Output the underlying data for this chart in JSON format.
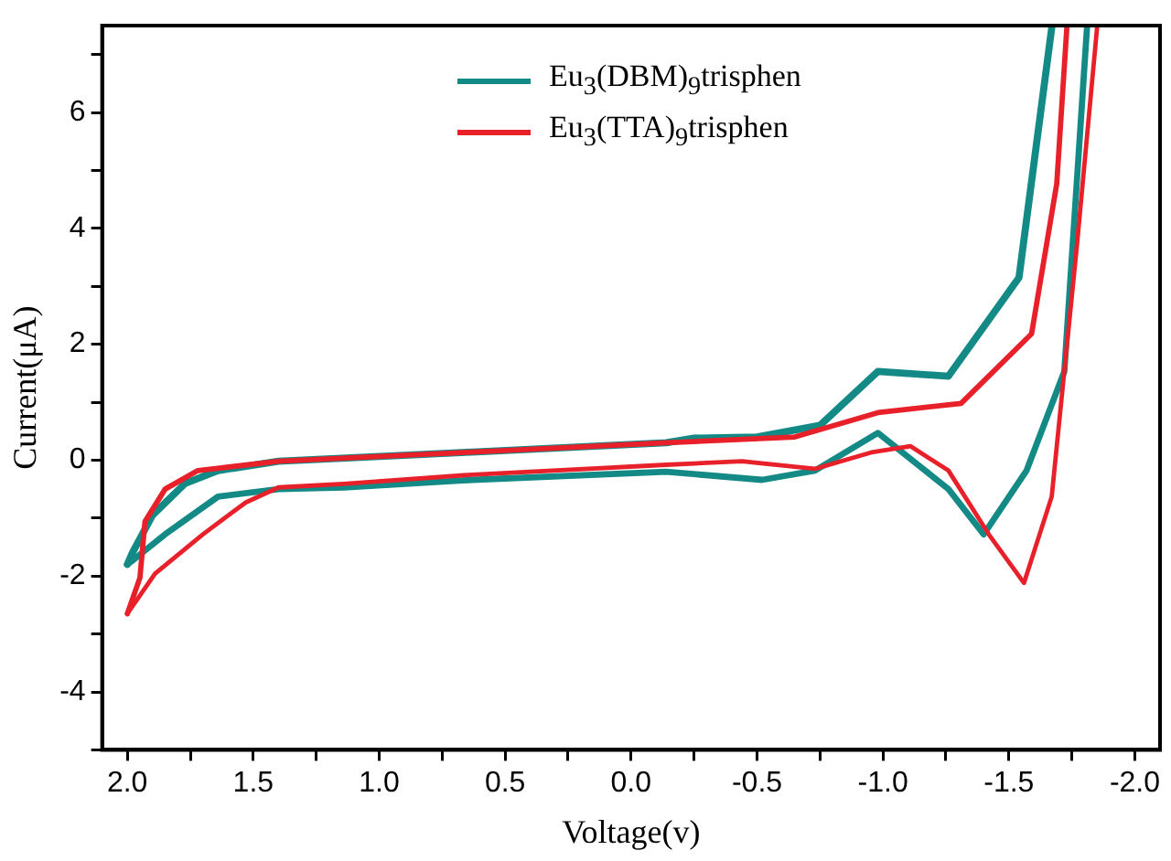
{
  "chart_data": {
    "type": "line",
    "xlabel": "Voltage(v)",
    "ylabel": "Current(μA)",
    "xlim": [
      2.1,
      -2.1
    ],
    "ylim": [
      -5,
      7.5
    ],
    "xticks": [
      {
        "value": 2,
        "label": "2.0"
      },
      {
        "value": 1.75,
        "label": null
      },
      {
        "value": 1.5,
        "label": "1.5"
      },
      {
        "value": 1.25,
        "label": null
      },
      {
        "value": 1,
        "label": "1.0"
      },
      {
        "value": 0.75,
        "label": null
      },
      {
        "value": 0.5,
        "label": "0.5"
      },
      {
        "value": 0.25,
        "label": null
      },
      {
        "value": 0,
        "label": "0.0"
      },
      {
        "value": -0.25,
        "label": null
      },
      {
        "value": -0.5,
        "label": "-0.5"
      },
      {
        "value": -0.75,
        "label": null
      },
      {
        "value": -1,
        "label": "-1.0"
      },
      {
        "value": -1.25,
        "label": null
      },
      {
        "value": -1.5,
        "label": "-1.5"
      },
      {
        "value": -1.75,
        "label": null
      },
      {
        "value": -2,
        "label": "-2.0"
      }
    ],
    "yticks": [
      {
        "value": -5,
        "label": null
      },
      -4,
      {
        "value": -3,
        "label": null
      },
      -2,
      {
        "value": -1,
        "label": null
      },
      0,
      {
        "value": 1,
        "label": null
      },
      2,
      {
        "value": 3,
        "label": null
      },
      4,
      {
        "value": 5,
        "label": null
      },
      6,
      {
        "value": 7,
        "label": null
      }
    ],
    "grid": false,
    "legend": "top",
    "marker": "none",
    "line_style": "solid",
    "series": [
      {
        "name": "Eu$_{3}$(DBM)$_{9}$trisphen",
        "color": "#138a86",
        "x": [
          2.0,
          1.98,
          1.9,
          1.77,
          1.64,
          1.4,
          0.63,
          -0.14,
          -0.25,
          -0.5,
          -0.75,
          -0.98,
          -1.26,
          -1.54,
          -1.67
        ],
        "values": [
          -1.8,
          -1.6,
          -0.95,
          -0.4,
          -0.18,
          -0.02,
          0.14,
          0.3,
          0.38,
          0.4,
          0.6,
          1.53,
          1.45,
          3.15,
          7.46
        ]
      },
      {
        "color": "#138a86",
        "x": [
          -1.81,
          -1.72,
          -1.57,
          -1.4,
          -1.26,
          -0.98,
          -0.73,
          -0.52,
          -0.14,
          0.63,
          1.14,
          1.4,
          1.64,
          1.85,
          1.97,
          2.0
        ],
        "values": [
          7.46,
          1.53,
          -0.18,
          -1.28,
          -0.5,
          0.47,
          -0.18,
          -0.34,
          -0.2,
          -0.34,
          -0.47,
          -0.5,
          -0.63,
          -1.28,
          -1.7,
          -1.8
        ]
      },
      {
        "name": "Eu$_{3}$(TTA)$_{9}$trisphen",
        "color": "#e8202a",
        "x": [
          2.0,
          1.95,
          1.93,
          1.85,
          1.72,
          1.4,
          0.63,
          -0.14,
          -0.65,
          -0.98,
          -1.31,
          -1.59,
          -1.69,
          -1.73
        ],
        "values": [
          -2.65,
          -2.03,
          -1.06,
          -0.5,
          -0.18,
          -0.02,
          0.14,
          0.3,
          0.4,
          0.82,
          0.98,
          2.18,
          4.77,
          7.46
        ]
      },
      {
        "color": "#e8202a",
        "x": [
          -1.85,
          -1.77,
          -1.67,
          -1.56,
          -1.42,
          -1.26,
          -1.11,
          -0.96,
          -0.73,
          -0.44,
          -0.14,
          0.63,
          1.14,
          1.4,
          1.53,
          1.7,
          1.89,
          2.0
        ],
        "values": [
          7.46,
          3.7,
          -0.63,
          -2.12,
          -1.28,
          -0.18,
          0.24,
          0.14,
          -0.15,
          -0.02,
          -0.08,
          -0.25,
          -0.41,
          -0.47,
          -0.73,
          -1.28,
          -1.96,
          -2.65
        ]
      }
    ]
  }
}
